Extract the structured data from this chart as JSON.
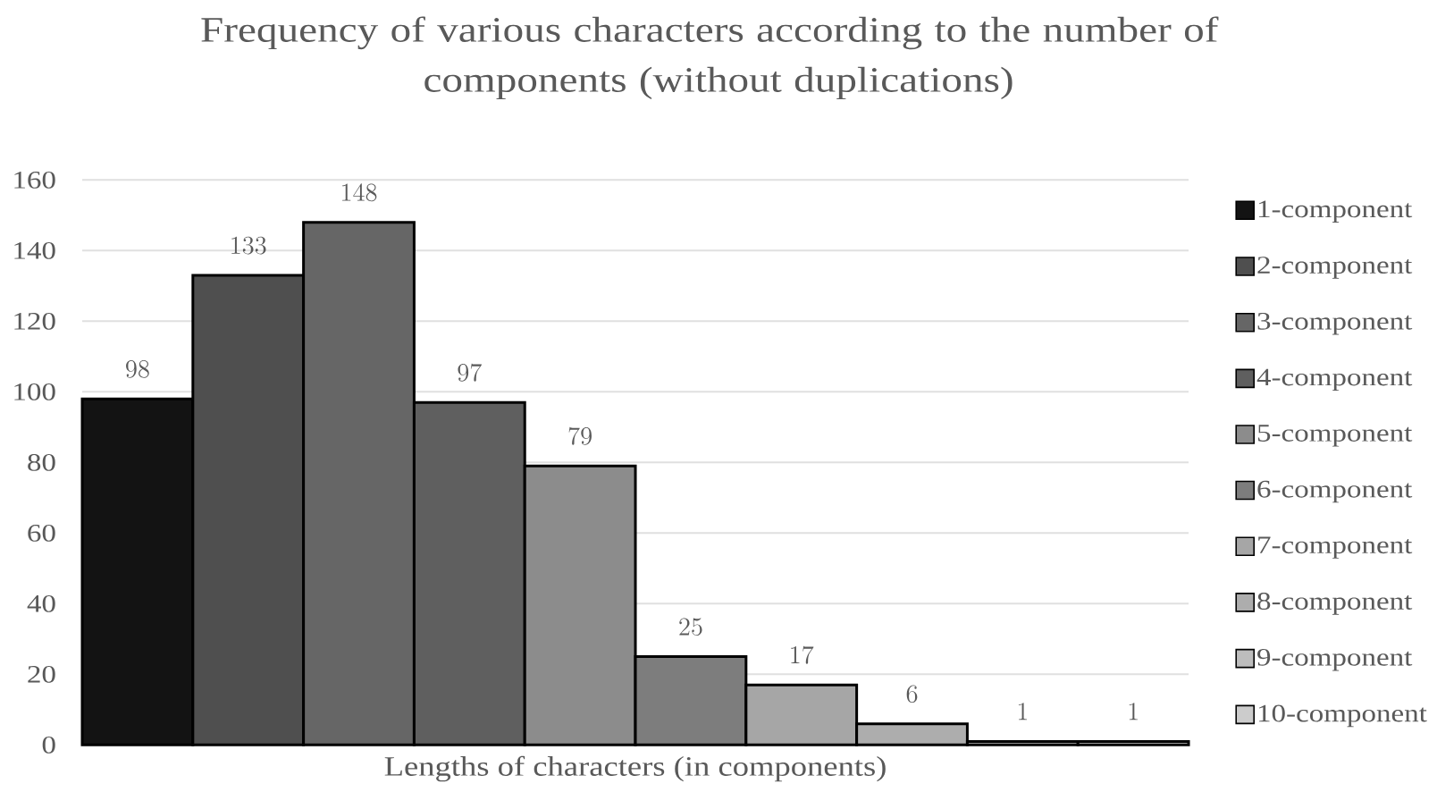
{
  "chart_data": {
    "type": "bar",
    "title": "Frequency of various characters according to the number of components (without duplications)",
    "xlabel": "Lengths of characters (in components)",
    "categories": [
      null
    ],
    "series": [
      {
        "name": "1-component",
        "color": "#131313",
        "values": [
          98
        ]
      },
      {
        "name": "2-component",
        "color": "#4f4f4f",
        "values": [
          133
        ]
      },
      {
        "name": "3-component",
        "color": "#666666",
        "values": [
          148
        ]
      },
      {
        "name": "4-component",
        "color": "#5f5f5f",
        "values": [
          97
        ]
      },
      {
        "name": "5-component",
        "color": "#8c8c8c",
        "values": [
          79
        ]
      },
      {
        "name": "6-component",
        "color": "#7d7d7d",
        "values": [
          25
        ]
      },
      {
        "name": "7-component",
        "color": "#a6a6a6",
        "values": [
          17
        ]
      },
      {
        "name": "8-component",
        "color": "#adadad",
        "values": [
          6
        ]
      },
      {
        "name": "9-component",
        "color": "#bdbdbd",
        "values": [
          1
        ]
      },
      {
        "name": "10-component",
        "color": "#cccccc",
        "values": [
          1
        ]
      }
    ],
    "ylim": [
      0,
      160
    ],
    "yticks": [
      0,
      20,
      40,
      60,
      80,
      100,
      120,
      140,
      160
    ],
    "grid": "y",
    "legend": "right",
    "data_labels": true
  }
}
